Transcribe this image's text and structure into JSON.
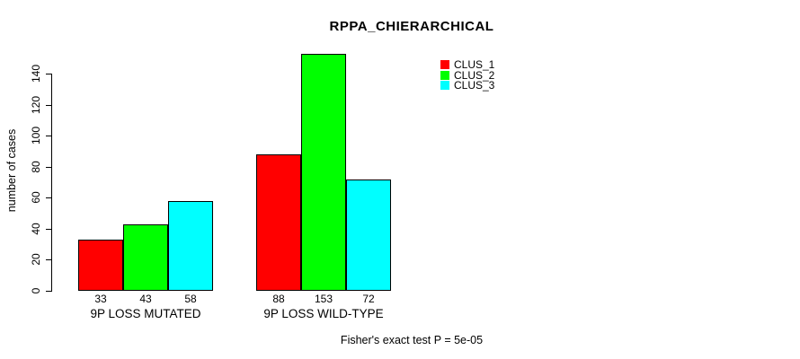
{
  "chart_data": {
    "type": "bar",
    "title": "RPPA_CHIERARCHICAL",
    "ylabel": "number of cases",
    "xlabel": "",
    "categories": [
      "9P LOSS MUTATED",
      "9P LOSS WILD-TYPE"
    ],
    "series": [
      {
        "name": "CLUS_1",
        "color": "#ff0000",
        "values": [
          33,
          88
        ]
      },
      {
        "name": "CLUS_2",
        "color": "#00ff00",
        "values": [
          43,
          153
        ]
      },
      {
        "name": "CLUS_3",
        "color": "#00ffff",
        "values": [
          58,
          72
        ]
      }
    ],
    "bar_value_labels": [
      [
        33,
        43,
        58
      ],
      [
        88,
        153,
        72
      ]
    ],
    "yticks": [
      0,
      20,
      40,
      60,
      80,
      100,
      120,
      140
    ],
    "ylim": [
      0,
      155
    ],
    "grid": false,
    "legend_position": "top-right",
    "legend_entries": [
      "CLUS_1",
      "CLUS_2",
      "CLUS_3"
    ],
    "annotation": "Fisher's exact test P = 5e-05",
    "axis_color": "#000000",
    "background_color": "#ffffff",
    "text_color": "#000000"
  }
}
